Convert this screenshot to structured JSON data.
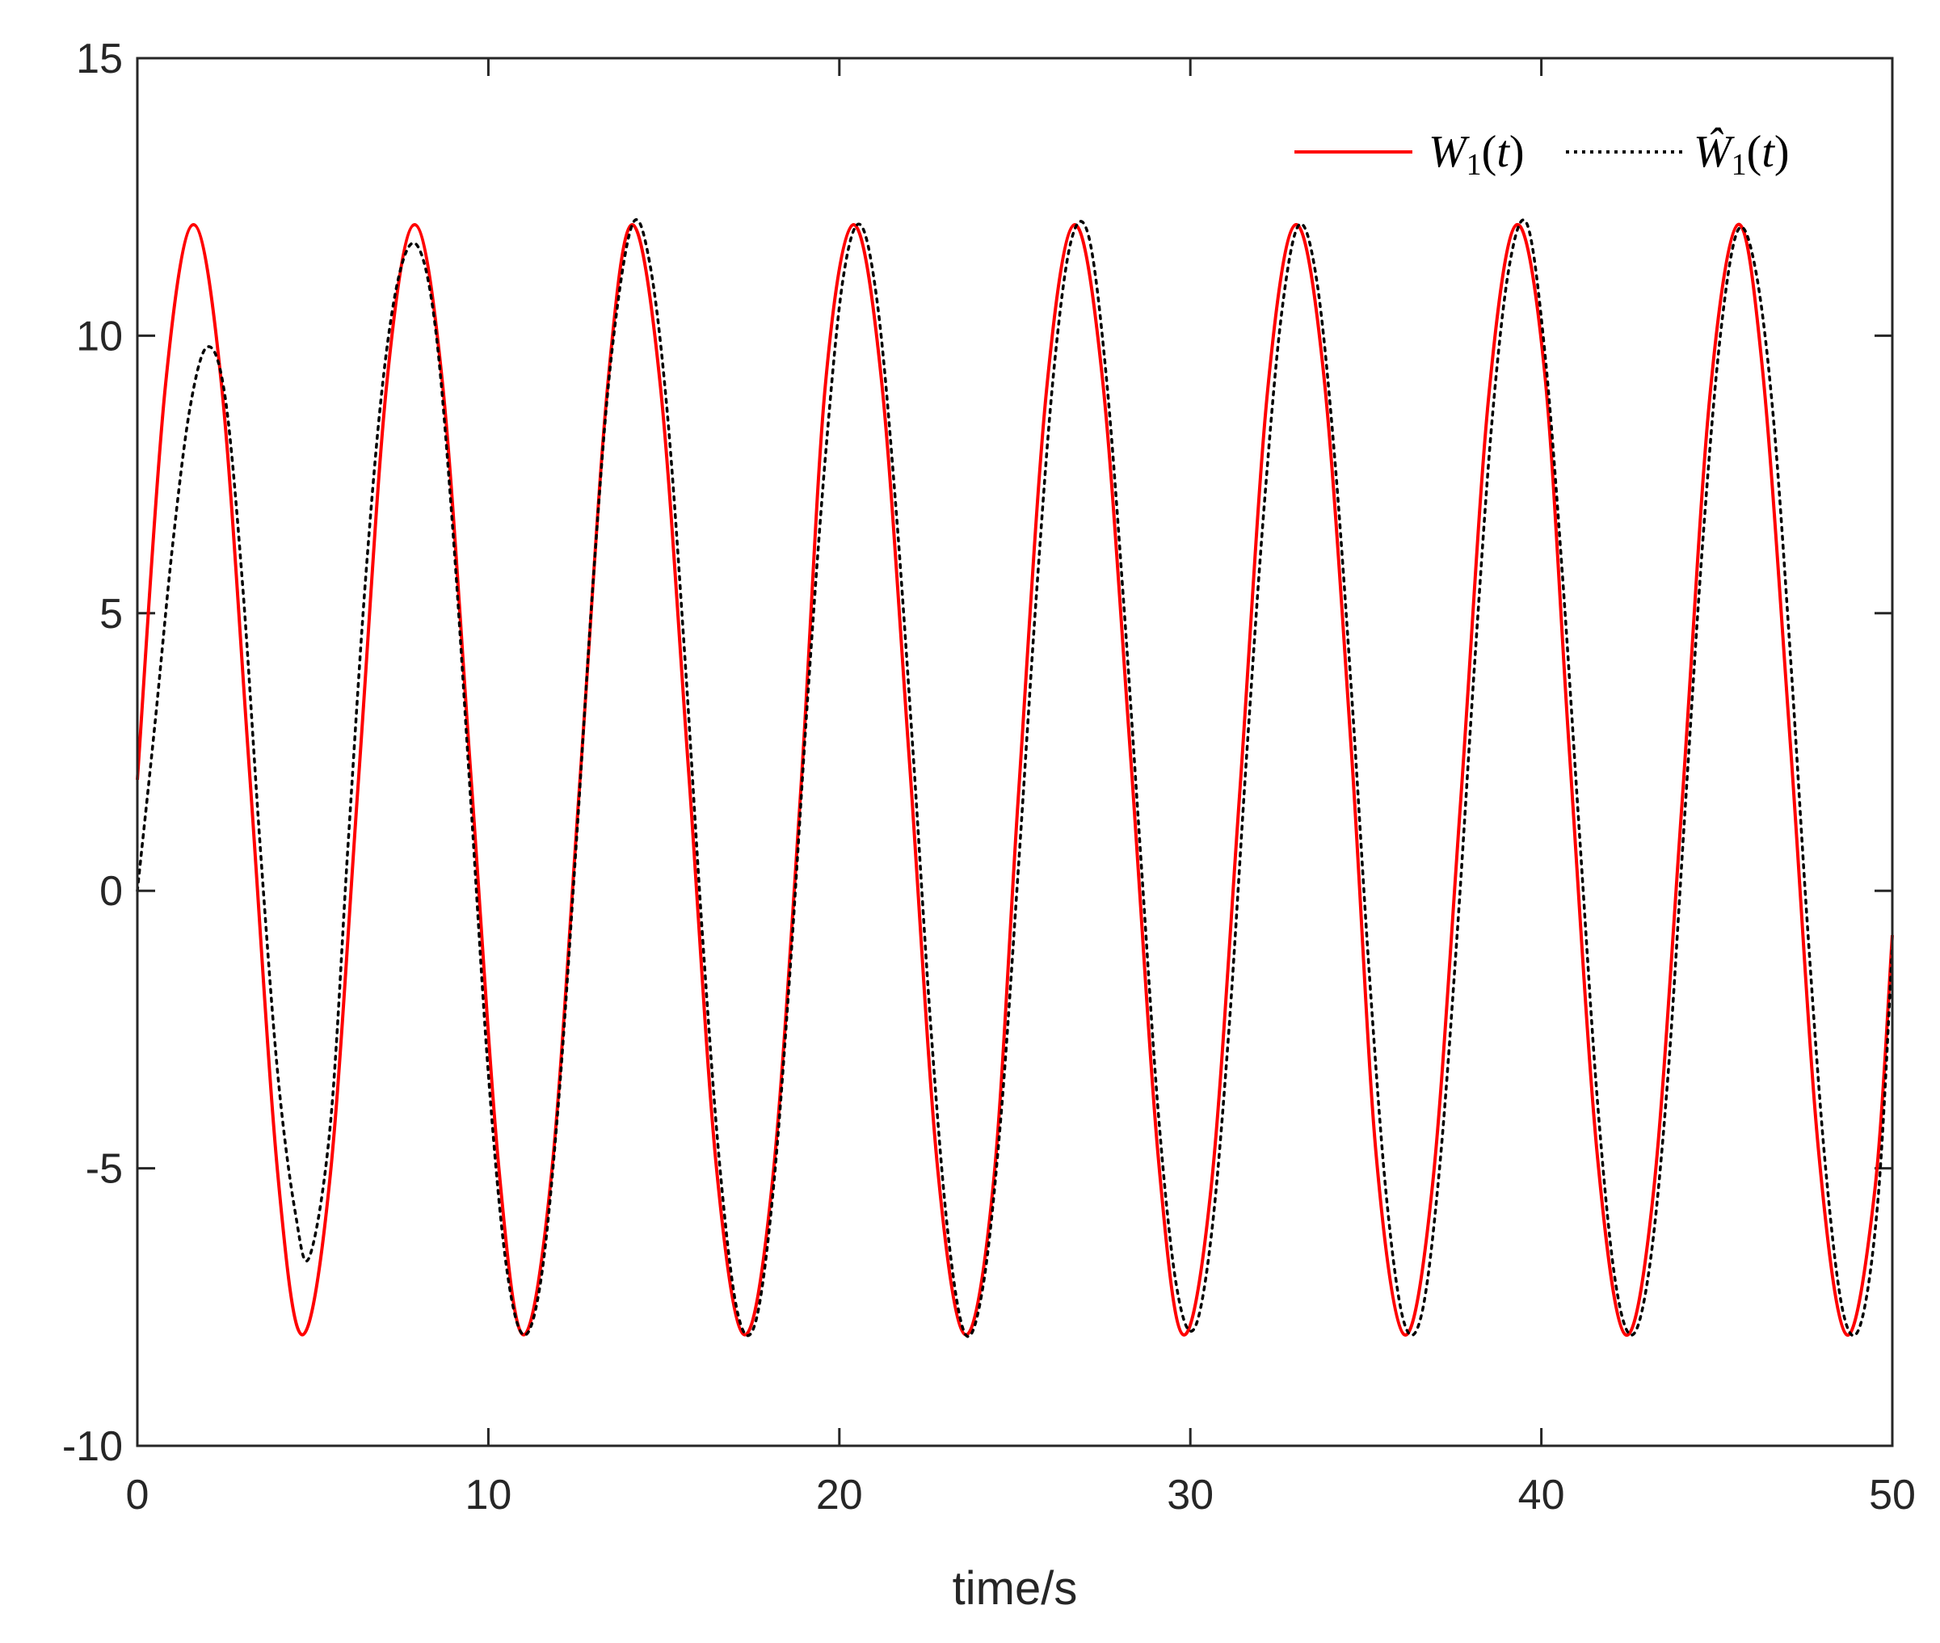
{
  "chart_data": {
    "type": "line",
    "title": "",
    "xlabel": "time/s",
    "ylabel": "",
    "xlim": [
      0,
      50
    ],
    "ylim": [
      -10,
      15
    ],
    "x_ticks": [
      0,
      10,
      20,
      30,
      40,
      50
    ],
    "y_ticks": [
      -10,
      -5,
      0,
      5,
      10,
      15
    ],
    "x_tick_labels": [
      "0",
      "10",
      "20",
      "30",
      "40",
      "50"
    ],
    "y_tick_labels": [
      "-10",
      "-5",
      "0",
      "5",
      "10",
      "15"
    ],
    "grid": false,
    "legend_position": "top-right",
    "series": [
      {
        "name": "W1(t)",
        "legend_label": "W_1(t)",
        "color": "#ff0000",
        "style": "solid",
        "x": [
          0,
          0.8,
          1.6,
          2.4,
          3.2,
          4.0,
          4.7,
          5.5,
          6.3,
          7.1,
          7.9,
          8.7,
          9.5,
          10.3,
          11.0,
          11.8,
          12.6,
          13.4,
          14.1,
          14.9,
          15.7,
          16.5,
          17.3,
          18.1,
          18.9,
          19.6,
          20.4,
          21.2,
          22.0,
          22.8,
          23.6,
          24.4,
          25.1,
          25.9,
          26.7,
          27.5,
          28.3,
          29.1,
          29.8,
          30.6,
          31.4,
          32.2,
          33.0,
          33.8,
          34.6,
          35.3,
          36.1,
          36.9,
          37.7,
          38.5,
          39.3,
          40.1,
          40.8,
          41.6,
          42.4,
          43.2,
          44.0,
          44.8,
          45.6,
          46.3,
          47.1,
          47.9,
          48.7,
          49.5,
          50.0
        ],
        "values": [
          2.0,
          9.1,
          12.0,
          9.1,
          2.1,
          -5.1,
          -8.0,
          -5.1,
          2.0,
          9.1,
          12.0,
          9.1,
          2.1,
          -5.0,
          -8.0,
          -5.1,
          1.9,
          9.1,
          12.0,
          9.1,
          2.2,
          -5.0,
          -8.0,
          -5.2,
          1.8,
          9.1,
          12.0,
          9.2,
          2.3,
          -5.0,
          -8.0,
          -5.2,
          1.7,
          9.0,
          12.0,
          9.2,
          2.4,
          -4.9,
          -8.0,
          -5.3,
          1.7,
          9.0,
          12.0,
          9.3,
          2.4,
          -4.8,
          -8.0,
          -5.3,
          1.6,
          8.9,
          12.0,
          9.3,
          2.5,
          -4.8,
          -8.0,
          -5.4,
          1.5,
          8.9,
          12.0,
          9.4,
          2.6,
          -4.7,
          -8.0,
          -5.4,
          -0.8
        ]
      },
      {
        "name": "Ŵ1(t)",
        "legend_label": "Ŵ_1(t)",
        "color": "#000000",
        "style": "dotted",
        "x": [
          0,
          0.5,
          1.0,
          1.5,
          2.0,
          2.5,
          3.0,
          3.5,
          4.0,
          4.5,
          4.9,
          5.5,
          6.0,
          6.5,
          7.0,
          7.5,
          8.0,
          8.5,
          9.0,
          9.5,
          10.0,
          10.5,
          11.0,
          11.5,
          12.0,
          12.5,
          13.0,
          13.5,
          14.1,
          14.6,
          15.1,
          15.6,
          16.1,
          16.6,
          17.1,
          17.6,
          18.1,
          18.6,
          19.1,
          19.6,
          20.1,
          20.6,
          21.1,
          21.6,
          22.1,
          22.6,
          23.1,
          23.6,
          24.1,
          24.6,
          25.1,
          25.6,
          26.1,
          26.6,
          27.1,
          27.6,
          28.1,
          28.6,
          29.1,
          29.6,
          30.1,
          30.6,
          31.1,
          31.6,
          32.1,
          32.6,
          33.1,
          33.6,
          34.1,
          34.6,
          35.1,
          35.6,
          36.1,
          36.6,
          37.1,
          37.6,
          38.1,
          38.6,
          39.1,
          39.6,
          40.1,
          40.6,
          41.1,
          41.6,
          42.1,
          42.6,
          43.1,
          43.6,
          44.1,
          44.6,
          45.1,
          45.6,
          46.1,
          46.6,
          47.1,
          47.6,
          48.1,
          48.6,
          49.1,
          49.6,
          50.0
        ],
        "values": [
          0.0,
          3.0,
          6.2,
          8.7,
          9.8,
          8.9,
          5.5,
          0.8,
          -3.3,
          -5.8,
          -6.6,
          -4.2,
          0.8,
          5.6,
          9.2,
          11.2,
          11.6,
          10.1,
          6.4,
          1.6,
          -3.3,
          -6.7,
          -8.0,
          -7.0,
          -3.8,
          0.8,
          5.7,
          9.6,
          12.0,
          11.3,
          8.6,
          4.2,
          -0.8,
          -5.0,
          -7.6,
          -7.8,
          -5.5,
          -1.4,
          3.5,
          7.8,
          11.0,
          12.0,
          10.5,
          7.0,
          2.5,
          -2.4,
          -6.2,
          -8.0,
          -7.1,
          -4.1,
          0.4,
          5.2,
          9.3,
          11.7,
          11.8,
          9.3,
          5.2,
          0.5,
          -4.1,
          -7.1,
          -7.9,
          -6.2,
          -2.5,
          2.4,
          6.9,
          10.4,
          12.0,
          11.0,
          7.9,
          3.5,
          -1.5,
          -5.6,
          -7.8,
          -7.6,
          -5.0,
          -0.8,
          4.1,
          8.5,
          11.3,
          12.0,
          9.7,
          5.7,
          0.9,
          -3.8,
          -7.0,
          -8.0,
          -6.7,
          -3.4,
          1.5,
          6.3,
          10.0,
          11.9,
          11.2,
          8.6,
          4.2,
          -0.8,
          -5.0,
          -7.6,
          -7.8,
          -5.5,
          -1.0
        ]
      }
    ]
  }
}
